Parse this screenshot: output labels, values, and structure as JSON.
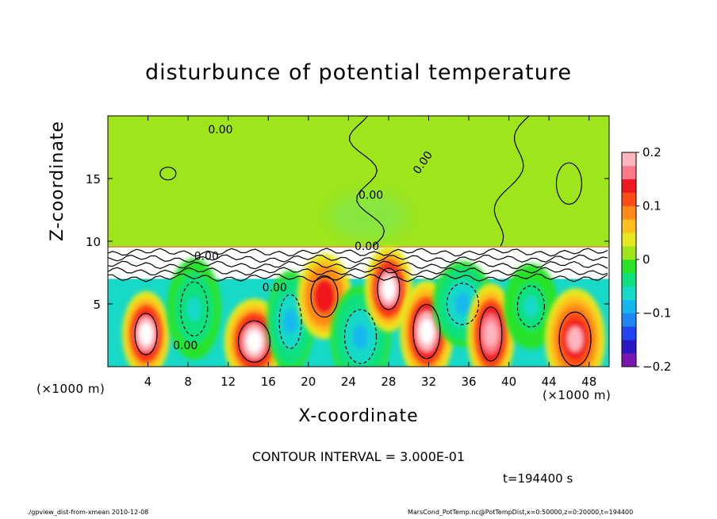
{
  "chart_data": {
    "type": "heatmap",
    "title": "disturbunce of potential temperature",
    "xlabel": "X-coordinate",
    "ylabel": "Z-coordinate",
    "x_unit_label": "(×1000 m)",
    "xlim": [
      0,
      50
    ],
    "ylim": [
      0,
      20
    ],
    "xticks": [
      4,
      8,
      12,
      16,
      20,
      24,
      28,
      32,
      36,
      40,
      44,
      48
    ],
    "yticks": [
      5,
      10,
      15
    ],
    "colorbar": {
      "range": [
        -0.2,
        0.2
      ],
      "ticks": [
        "0.2",
        "0.1",
        "0",
        "−0.1",
        "−0.2"
      ],
      "tick_values": [
        0.2,
        0.1,
        0,
        -0.1,
        -0.2
      ]
    },
    "contour_interval_text": "CONTOUR INTERVAL = 3.000E-01",
    "contour_labels": [
      "0.00",
      "0.00",
      "0.00",
      "0.00",
      "0.00",
      "0.00",
      "0.00"
    ],
    "time_text": "t=194400 s",
    "inversion_height": 9.5,
    "upper_layer_value": 0,
    "roll_cells": [
      {
        "x": 3.8,
        "z": 2.6,
        "value": 0.22
      },
      {
        "x": 8.6,
        "z": 4.6,
        "value": -0.06
      },
      {
        "x": 14.6,
        "z": 2.0,
        "value": 0.22
      },
      {
        "x": 18.2,
        "z": 3.6,
        "value": -0.08
      },
      {
        "x": 21.6,
        "z": 5.6,
        "value": 0.15
      },
      {
        "x": 25.2,
        "z": 2.4,
        "value": -0.09
      },
      {
        "x": 28.0,
        "z": 6.2,
        "value": 0.22
      },
      {
        "x": 31.8,
        "z": 2.8,
        "value": 0.22
      },
      {
        "x": 35.4,
        "z": 5.0,
        "value": -0.08
      },
      {
        "x": 38.2,
        "z": 2.6,
        "value": 0.2
      },
      {
        "x": 42.2,
        "z": 4.8,
        "value": -0.05
      },
      {
        "x": 46.6,
        "z": 2.2,
        "value": 0.18
      }
    ]
  },
  "footer": {
    "left": "./gpview_dist-from-xmean  2010-12-08",
    "right": "MarsCond_PotTemp.nc@PotTempDist,x=0:50000,z=0:20000,t=194400"
  }
}
